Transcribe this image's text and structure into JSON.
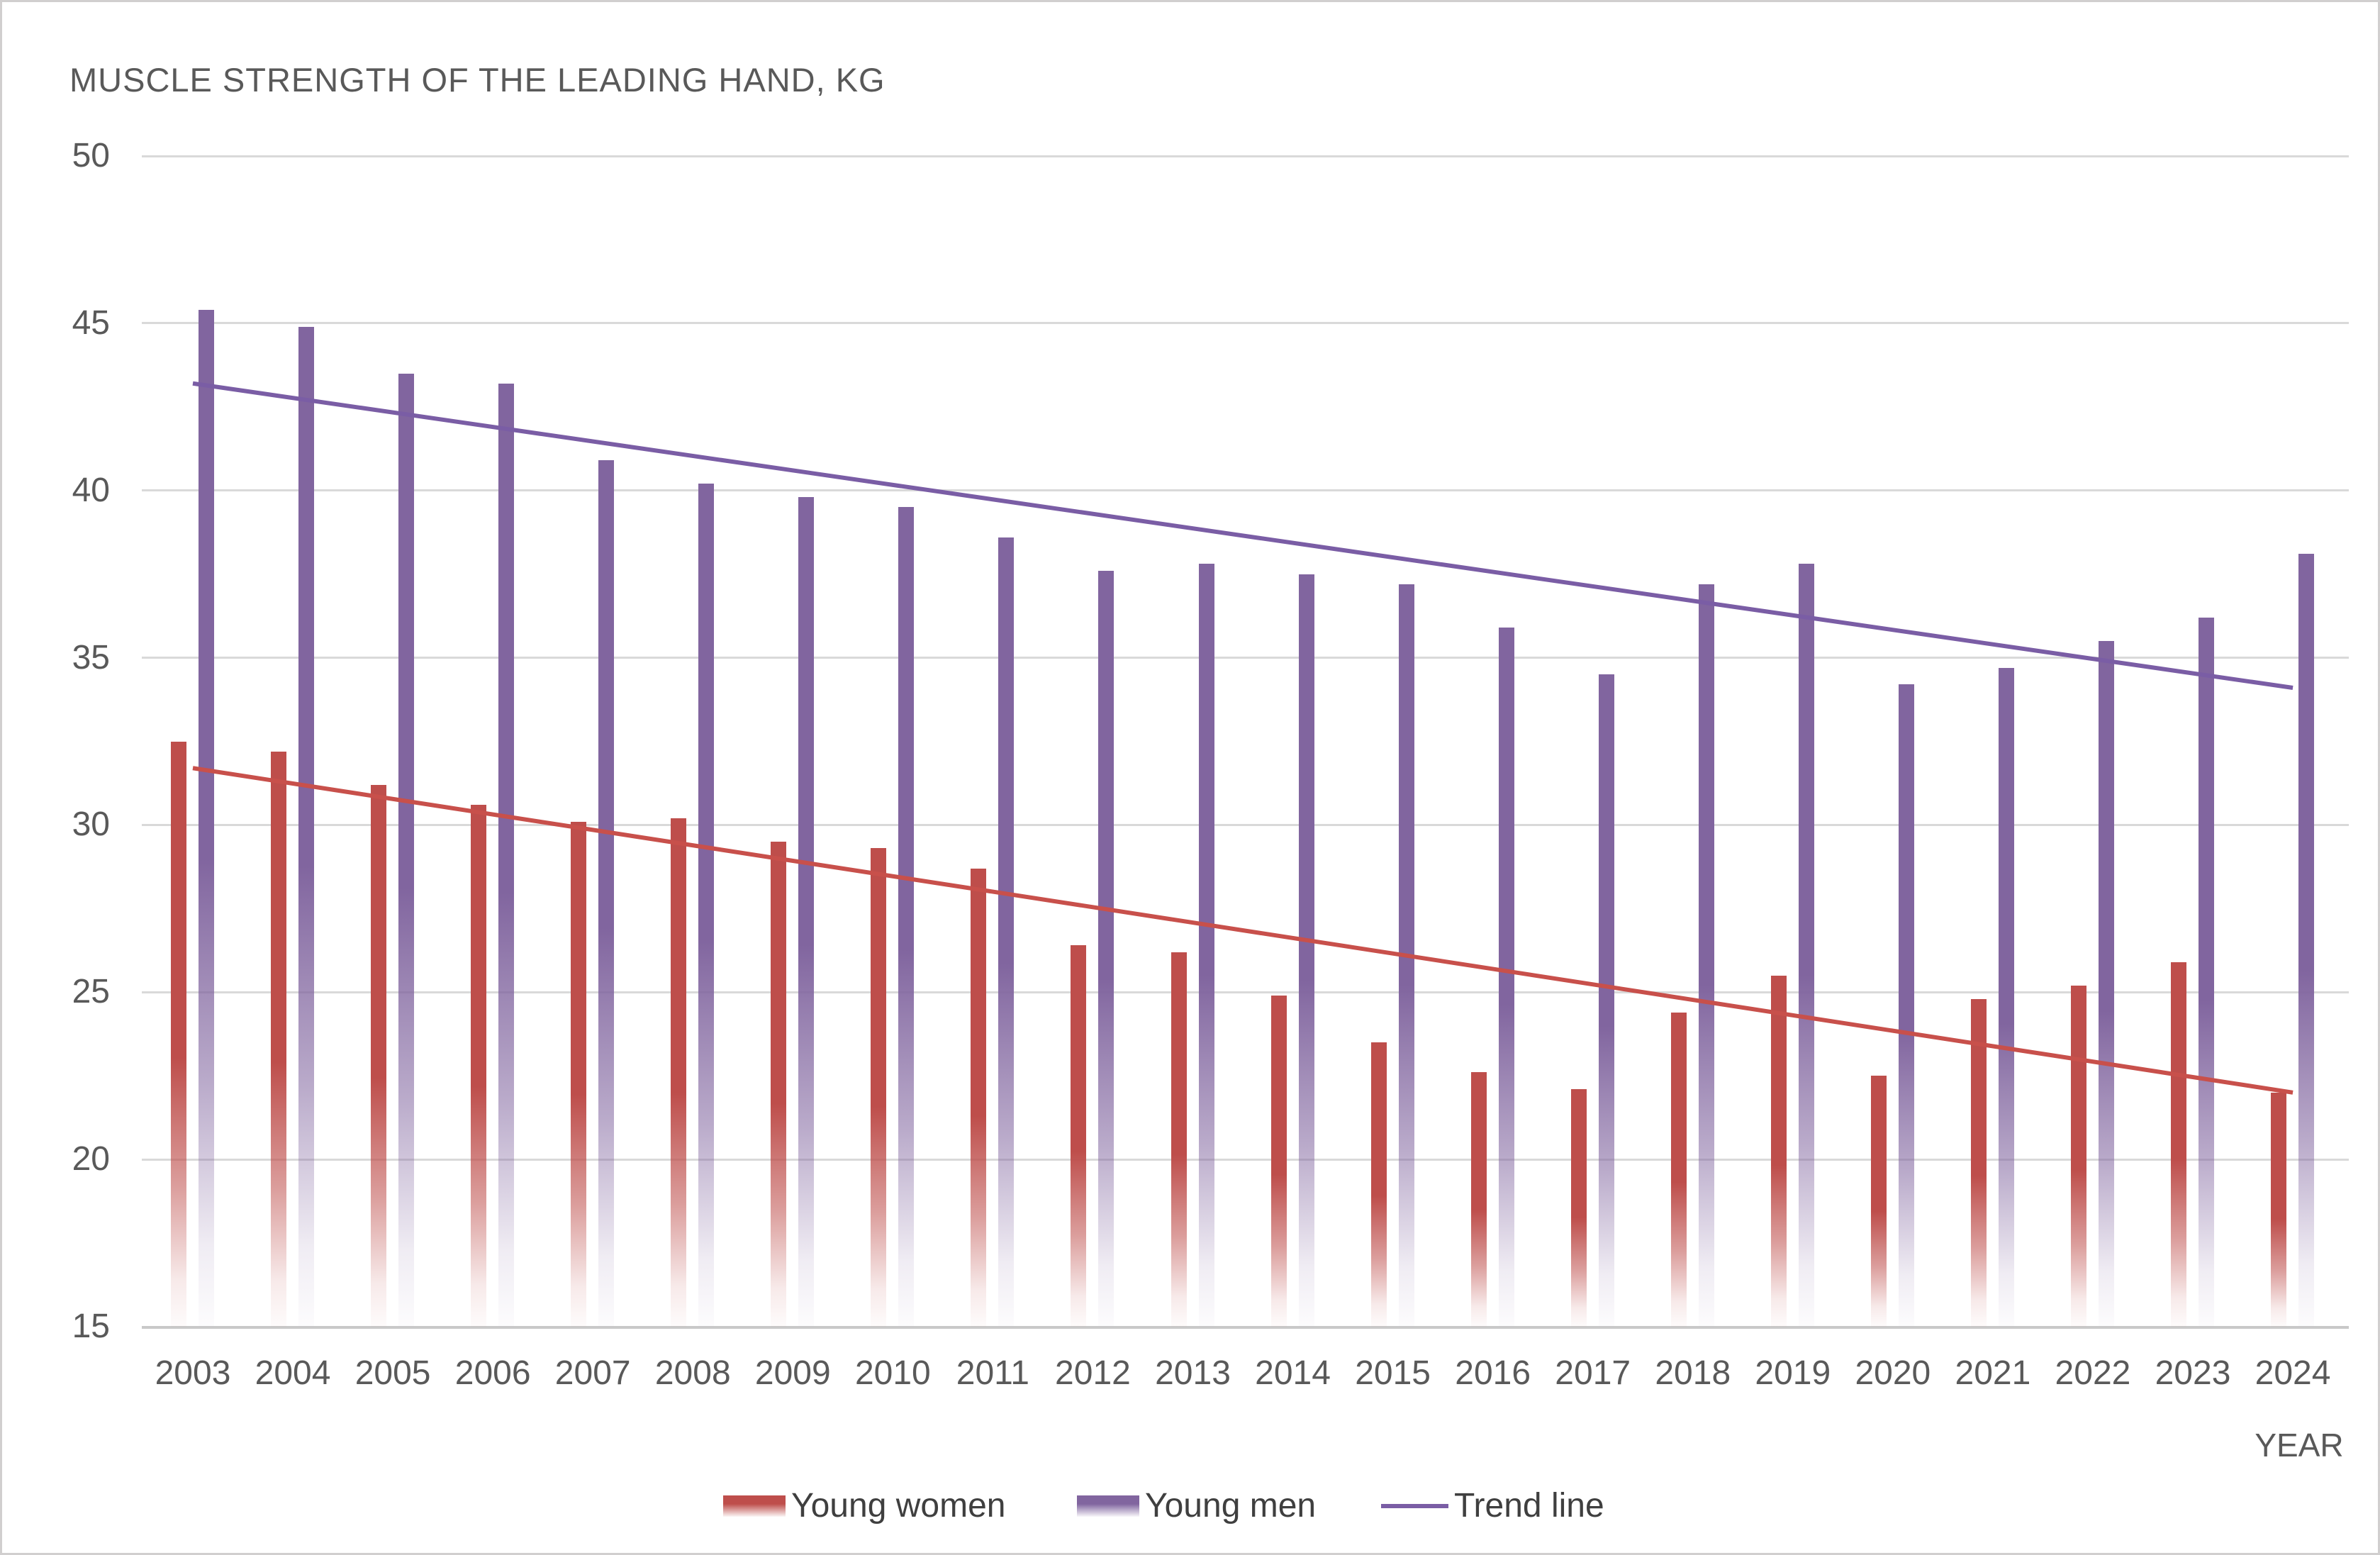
{
  "title": "MUSCLE STRENGTH OF THE LEADING HAND, KG",
  "x_axis_label": "YEAR",
  "legend": {
    "women": "Young women",
    "men": "Young men",
    "trend": "Trend line"
  },
  "colors": {
    "women_bar": "#be4e4b",
    "men_bar": "#81659f",
    "men_trend": "#7a5da5",
    "women_trend": "#c8504b",
    "gridline": "#d9d9d9",
    "axis_text": "#595959",
    "legend_text": "#3f3f3f",
    "background": "#ffffff"
  },
  "chart_data": {
    "type": "bar",
    "title": "MUSCLE STRENGTH OF THE LEADING HAND, KG",
    "xlabel": "YEAR",
    "ylabel": "",
    "ylim": [
      15,
      50
    ],
    "yticks": [
      50,
      45,
      40,
      35,
      30,
      25,
      20,
      15
    ],
    "grid": "horizontal",
    "legend_position": "bottom",
    "categories": [
      "2003",
      "2004",
      "2005",
      "2006",
      "2007",
      "2008",
      "2009",
      "2010",
      "2011",
      "2012",
      "2013",
      "2014",
      "2015",
      "2016",
      "2017",
      "2018",
      "2019",
      "2020",
      "2021",
      "2022",
      "2023",
      "2024"
    ],
    "series": [
      {
        "name": "Young women",
        "color": "#be4e4b",
        "values": [
          32.5,
          32.2,
          31.2,
          30.6,
          30.1,
          30.2,
          29.5,
          29.3,
          28.7,
          26.4,
          26.2,
          24.9,
          23.5,
          22.6,
          22.1,
          24.4,
          25.5,
          22.5,
          24.8,
          25.2,
          25.9,
          22.0
        ]
      },
      {
        "name": "Young men",
        "color": "#81659f",
        "values": [
          45.4,
          44.9,
          43.5,
          43.2,
          40.9,
          40.2,
          39.8,
          39.5,
          38.6,
          37.6,
          37.8,
          37.5,
          37.2,
          35.9,
          34.5,
          37.2,
          37.8,
          34.2,
          34.7,
          35.5,
          36.2,
          38.1
        ]
      }
    ],
    "trend_lines": [
      {
        "name": "Trend line (young men)",
        "color": "#7a5da5",
        "start_category": "2003",
        "end_category": "2024",
        "start_value": 43.2,
        "end_value": 34.1
      },
      {
        "name": "Trend line (young women)",
        "color": "#c8504b",
        "start_category": "2003",
        "end_category": "2024",
        "start_value": 31.7,
        "end_value": 22.0
      }
    ]
  }
}
